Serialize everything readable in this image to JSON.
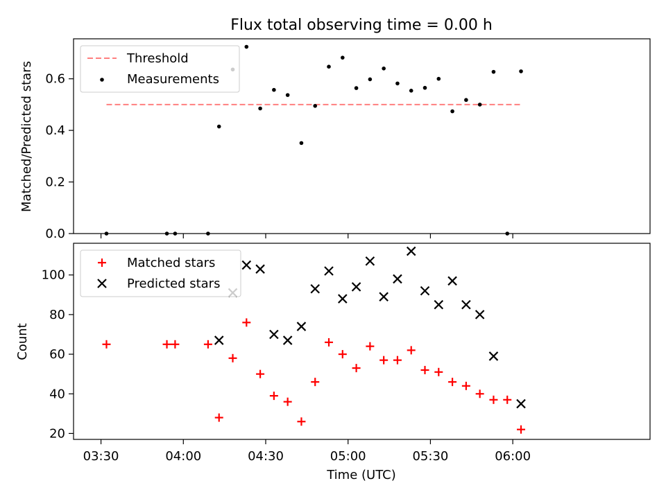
{
  "figure": {
    "title": "Flux total observing time = 0.00 h",
    "xlabel": "Time (UTC)",
    "xticks": [
      "03:30",
      "04:00",
      "04:30",
      "05:00",
      "05:30",
      "06:00"
    ],
    "xtick_minutes": [
      210,
      240,
      270,
      300,
      330,
      360
    ],
    "xlim_minutes": [
      200,
      410
    ]
  },
  "chart_data": [
    {
      "type": "scatter",
      "ylabel": "Matched/Predicted stars",
      "ylim": [
        0,
        0.755
      ],
      "yticks": [
        "0.0",
        "0.2",
        "0.4",
        "0.6"
      ],
      "ytick_values": [
        0.0,
        0.2,
        0.4,
        0.6
      ],
      "legend_position": "upper-left",
      "series": [
        {
          "name": "Threshold",
          "style": "dashed-line",
          "color": "#ff7f7f",
          "x": [
            "03:32",
            "06:03"
          ],
          "y": [
            0.5,
            0.5
          ]
        },
        {
          "name": "Measurements",
          "style": "dot",
          "color": "#000000",
          "x": [
            "03:32",
            "03:54",
            "03:57",
            "04:09",
            "04:13",
            "04:18",
            "04:23",
            "04:28",
            "04:33",
            "04:38",
            "04:43",
            "04:48",
            "04:53",
            "04:58",
            "05:03",
            "05:08",
            "05:13",
            "05:18",
            "05:23",
            "05:28",
            "05:33",
            "05:38",
            "05:43",
            "05:48",
            "05:53",
            "05:58",
            "06:03"
          ],
          "y": [
            0.0,
            0.0,
            0.0,
            0.0,
            0.415,
            0.636,
            0.724,
            0.485,
            0.557,
            0.537,
            0.351,
            0.495,
            0.647,
            0.682,
            0.564,
            0.598,
            0.64,
            0.582,
            0.554,
            0.565,
            0.6,
            0.474,
            0.518,
            0.5,
            0.627,
            0.0,
            0.629
          ]
        }
      ]
    },
    {
      "type": "scatter",
      "ylabel": "Count",
      "ylim": [
        17,
        116
      ],
      "yticks": [
        "20",
        "40",
        "60",
        "80",
        "100"
      ],
      "ytick_values": [
        20,
        40,
        60,
        80,
        100
      ],
      "legend_position": "upper-left",
      "series": [
        {
          "name": "Matched stars",
          "marker": "plus",
          "color": "#ff0000",
          "x": [
            "03:32",
            "03:54",
            "03:57",
            "04:09",
            "04:13",
            "04:18",
            "04:23",
            "04:28",
            "04:33",
            "04:38",
            "04:43",
            "04:48",
            "04:53",
            "04:58",
            "05:03",
            "05:08",
            "05:13",
            "05:18",
            "05:23",
            "05:28",
            "05:33",
            "05:38",
            "05:43",
            "05:48",
            "05:53",
            "05:58",
            "06:03"
          ],
          "y": [
            65,
            65,
            65,
            65,
            28,
            58,
            76,
            50,
            39,
            36,
            26,
            46,
            66,
            60,
            53,
            64,
            57,
            57,
            62,
            52,
            51,
            46,
            44,
            40,
            37,
            37,
            22
          ]
        },
        {
          "name": "Predicted stars",
          "marker": "x",
          "color": "#000000",
          "x": [
            "04:13",
            "04:18",
            "04:23",
            "04:28",
            "04:33",
            "04:38",
            "04:43",
            "04:48",
            "04:53",
            "04:58",
            "05:03",
            "05:08",
            "05:13",
            "05:18",
            "05:23",
            "05:28",
            "05:33",
            "05:38",
            "05:43",
            "05:48",
            "05:53",
            "06:03"
          ],
          "y": [
            67,
            91,
            105,
            103,
            70,
            67,
            74,
            93,
            102,
            88,
            94,
            107,
            89,
            98,
            112,
            92,
            85,
            97,
            85,
            80,
            59,
            35
          ]
        }
      ]
    }
  ]
}
